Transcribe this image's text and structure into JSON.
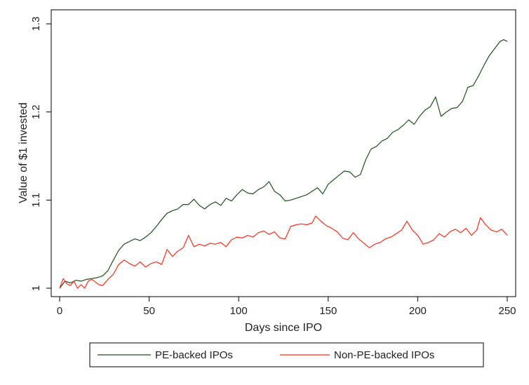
{
  "chart_data": {
    "type": "line",
    "title": "",
    "xlabel": "Days since IPO",
    "ylabel": "Value of $1 invested",
    "xlim": [
      0,
      252
    ],
    "ylim": [
      0.99,
      1.3
    ],
    "xticks": [
      0,
      50,
      100,
      150,
      200,
      250
    ],
    "yticks": [
      1,
      1.1,
      1.2,
      1.3
    ],
    "ytick_labels": [
      "1",
      "1.1",
      "1.2",
      "1.3"
    ],
    "grid": false,
    "legend": "bottom",
    "series": [
      {
        "name": "PE-backed IPOs",
        "color": "#1f4f1f",
        "points": [
          [
            0,
            1.0
          ],
          [
            3,
            1.008
          ],
          [
            6,
            1.006
          ],
          [
            9,
            1.009
          ],
          [
            12,
            1.008
          ],
          [
            15,
            1.01
          ],
          [
            18,
            1.011
          ],
          [
            21,
            1.012
          ],
          [
            24,
            1.014
          ],
          [
            27,
            1.02
          ],
          [
            30,
            1.032
          ],
          [
            33,
            1.043
          ],
          [
            36,
            1.05
          ],
          [
            39,
            1.053
          ],
          [
            42,
            1.056
          ],
          [
            45,
            1.054
          ],
          [
            48,
            1.058
          ],
          [
            51,
            1.063
          ],
          [
            54,
            1.07
          ],
          [
            57,
            1.078
          ],
          [
            60,
            1.085
          ],
          [
            63,
            1.088
          ],
          [
            66,
            1.09
          ],
          [
            69,
            1.095
          ],
          [
            72,
            1.095
          ],
          [
            75,
            1.101
          ],
          [
            78,
            1.094
          ],
          [
            81,
            1.09
          ],
          [
            84,
            1.095
          ],
          [
            87,
            1.098
          ],
          [
            90,
            1.094
          ],
          [
            93,
            1.102
          ],
          [
            96,
            1.099
          ],
          [
            99,
            1.106
          ],
          [
            102,
            1.112
          ],
          [
            105,
            1.108
          ],
          [
            108,
            1.107
          ],
          [
            111,
            1.112
          ],
          [
            114,
            1.115
          ],
          [
            117,
            1.121
          ],
          [
            120,
            1.11
          ],
          [
            123,
            1.106
          ],
          [
            126,
            1.099
          ],
          [
            129,
            1.1
          ],
          [
            132,
            1.102
          ],
          [
            135,
            1.104
          ],
          [
            138,
            1.106
          ],
          [
            141,
            1.11
          ],
          [
            144,
            1.114
          ],
          [
            147,
            1.107
          ],
          [
            150,
            1.118
          ],
          [
            153,
            1.123
          ],
          [
            156,
            1.128
          ],
          [
            159,
            1.133
          ],
          [
            162,
            1.132
          ],
          [
            165,
            1.126
          ],
          [
            168,
            1.129
          ],
          [
            171,
            1.146
          ],
          [
            174,
            1.158
          ],
          [
            177,
            1.161
          ],
          [
            180,
            1.167
          ],
          [
            183,
            1.17
          ],
          [
            186,
            1.177
          ],
          [
            189,
            1.18
          ],
          [
            192,
            1.185
          ],
          [
            195,
            1.191
          ],
          [
            198,
            1.186
          ],
          [
            201,
            1.195
          ],
          [
            204,
            1.202
          ],
          [
            207,
            1.206
          ],
          [
            210,
            1.217
          ],
          [
            213,
            1.195
          ],
          [
            216,
            1.2
          ],
          [
            219,
            1.204
          ],
          [
            222,
            1.205
          ],
          [
            225,
            1.212
          ],
          [
            228,
            1.228
          ],
          [
            231,
            1.23
          ],
          [
            234,
            1.241
          ],
          [
            237,
            1.253
          ],
          [
            240,
            1.264
          ],
          [
            243,
            1.272
          ],
          [
            246,
            1.28
          ],
          [
            248,
            1.282
          ],
          [
            250,
            1.28
          ]
        ]
      },
      {
        "name": "Non-PE-backed IPOs",
        "color": "#ff2a1a",
        "points": [
          [
            0,
            1.0
          ],
          [
            2,
            1.011
          ],
          [
            4,
            1.005
          ],
          [
            6,
            1.003
          ],
          [
            8,
            1.008
          ],
          [
            10,
            1.0
          ],
          [
            12,
            1.004
          ],
          [
            14,
            1.0
          ],
          [
            16,
            1.008
          ],
          [
            18,
            1.01
          ],
          [
            20,
            1.007
          ],
          [
            22,
            1.004
          ],
          [
            24,
            1.003
          ],
          [
            27,
            1.01
          ],
          [
            30,
            1.016
          ],
          [
            33,
            1.027
          ],
          [
            36,
            1.032
          ],
          [
            39,
            1.028
          ],
          [
            42,
            1.025
          ],
          [
            45,
            1.03
          ],
          [
            48,
            1.024
          ],
          [
            51,
            1.028
          ],
          [
            54,
            1.03
          ],
          [
            57,
            1.027
          ],
          [
            60,
            1.044
          ],
          [
            63,
            1.036
          ],
          [
            66,
            1.042
          ],
          [
            69,
            1.046
          ],
          [
            72,
            1.06
          ],
          [
            75,
            1.047
          ],
          [
            78,
            1.05
          ],
          [
            81,
            1.048
          ],
          [
            84,
            1.051
          ],
          [
            87,
            1.05
          ],
          [
            90,
            1.052
          ],
          [
            93,
            1.047
          ],
          [
            96,
            1.055
          ],
          [
            99,
            1.058
          ],
          [
            102,
            1.057
          ],
          [
            105,
            1.06
          ],
          [
            108,
            1.058
          ],
          [
            111,
            1.063
          ],
          [
            114,
            1.065
          ],
          [
            117,
            1.061
          ],
          [
            120,
            1.064
          ],
          [
            123,
            1.057
          ],
          [
            126,
            1.056
          ],
          [
            129,
            1.07
          ],
          [
            132,
            1.072
          ],
          [
            135,
            1.073
          ],
          [
            138,
            1.072
          ],
          [
            141,
            1.074
          ],
          [
            143,
            1.082
          ],
          [
            146,
            1.076
          ],
          [
            149,
            1.071
          ],
          [
            152,
            1.068
          ],
          [
            155,
            1.064
          ],
          [
            158,
            1.057
          ],
          [
            161,
            1.055
          ],
          [
            164,
            1.063
          ],
          [
            167,
            1.056
          ],
          [
            170,
            1.051
          ],
          [
            173,
            1.046
          ],
          [
            176,
            1.05
          ],
          [
            179,
            1.052
          ],
          [
            182,
            1.056
          ],
          [
            185,
            1.058
          ],
          [
            188,
            1.062
          ],
          [
            191,
            1.066
          ],
          [
            194,
            1.076
          ],
          [
            197,
            1.066
          ],
          [
            200,
            1.06
          ],
          [
            203,
            1.05
          ],
          [
            206,
            1.052
          ],
          [
            209,
            1.055
          ],
          [
            212,
            1.062
          ],
          [
            215,
            1.058
          ],
          [
            218,
            1.064
          ],
          [
            221,
            1.067
          ],
          [
            224,
            1.063
          ],
          [
            227,
            1.068
          ],
          [
            230,
            1.06
          ],
          [
            233,
            1.066
          ],
          [
            235,
            1.08
          ],
          [
            238,
            1.072
          ],
          [
            241,
            1.066
          ],
          [
            244,
            1.064
          ],
          [
            247,
            1.067
          ],
          [
            250,
            1.06
          ]
        ]
      }
    ]
  }
}
